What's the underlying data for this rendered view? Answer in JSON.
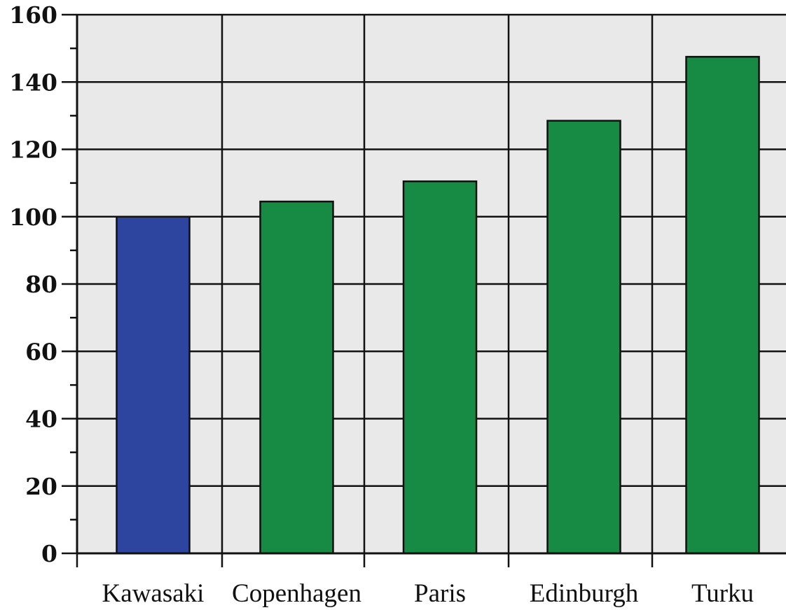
{
  "chart_data": {
    "type": "bar",
    "categories": [
      "Kawasaki",
      "Copenhagen",
      "Paris",
      "Edinburgh",
      "Turku"
    ],
    "values": [
      100,
      104.5,
      110.5,
      128.5,
      147.5
    ],
    "bar_colors": [
      "#2E45A0",
      "#178A44",
      "#178A44",
      "#178A44",
      "#178A44"
    ],
    "plot_background": "#E9E9E9",
    "ylim": [
      0,
      160
    ],
    "yticks": [
      "0",
      "20",
      "40",
      "60",
      "80",
      "100",
      "120",
      "140",
      "160"
    ],
    "grid": true,
    "title": "",
    "xlabel": "",
    "ylabel": ""
  }
}
